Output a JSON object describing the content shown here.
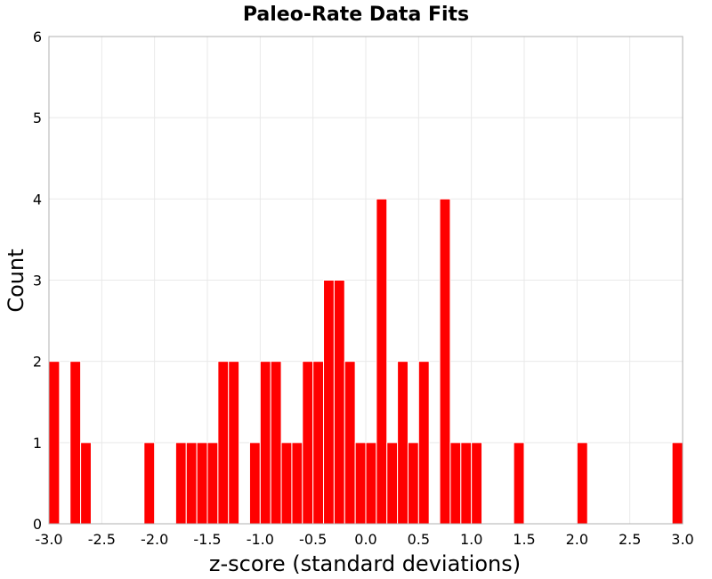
{
  "chart_data": {
    "type": "bar",
    "title": "Paleo-Rate Data Fits",
    "xlabel": "z-score (standard deviations)",
    "ylabel": "Count",
    "xlim": [
      -3.0,
      3.0
    ],
    "ylim": [
      0,
      6
    ],
    "bin_width": 0.1,
    "grid": true,
    "bar_color": "#ff0000",
    "x_ticks": [
      "-3.0",
      "-2.5",
      "-2.0",
      "-1.5",
      "-1.0",
      "-0.5",
      "0.0",
      "0.5",
      "1.0",
      "1.5",
      "2.0",
      "2.5",
      "3.0"
    ],
    "y_ticks": [
      "0",
      "1",
      "2",
      "3",
      "4",
      "5",
      "6"
    ],
    "bins": [
      {
        "x": -2.95,
        "count": 2
      },
      {
        "x": -2.75,
        "count": 2
      },
      {
        "x": -2.65,
        "count": 1
      },
      {
        "x": -2.05,
        "count": 1
      },
      {
        "x": -1.75,
        "count": 1
      },
      {
        "x": -1.65,
        "count": 1
      },
      {
        "x": -1.55,
        "count": 1
      },
      {
        "x": -1.45,
        "count": 1
      },
      {
        "x": -1.35,
        "count": 2
      },
      {
        "x": -1.25,
        "count": 2
      },
      {
        "x": -1.05,
        "count": 1
      },
      {
        "x": -0.95,
        "count": 2
      },
      {
        "x": -0.85,
        "count": 2
      },
      {
        "x": -0.75,
        "count": 1
      },
      {
        "x": -0.65,
        "count": 1
      },
      {
        "x": -0.55,
        "count": 2
      },
      {
        "x": -0.45,
        "count": 2
      },
      {
        "x": -0.35,
        "count": 3
      },
      {
        "x": -0.25,
        "count": 3
      },
      {
        "x": -0.15,
        "count": 2
      },
      {
        "x": -0.05,
        "count": 1
      },
      {
        "x": 0.05,
        "count": 1
      },
      {
        "x": 0.15,
        "count": 4
      },
      {
        "x": 0.25,
        "count": 1
      },
      {
        "x": 0.35,
        "count": 2
      },
      {
        "x": 0.45,
        "count": 1
      },
      {
        "x": 0.55,
        "count": 2
      },
      {
        "x": 0.75,
        "count": 4
      },
      {
        "x": 0.85,
        "count": 1
      },
      {
        "x": 0.95,
        "count": 1
      },
      {
        "x": 1.05,
        "count": 1
      },
      {
        "x": 1.45,
        "count": 1
      },
      {
        "x": 2.05,
        "count": 1
      },
      {
        "x": 2.95,
        "count": 1
      }
    ]
  }
}
